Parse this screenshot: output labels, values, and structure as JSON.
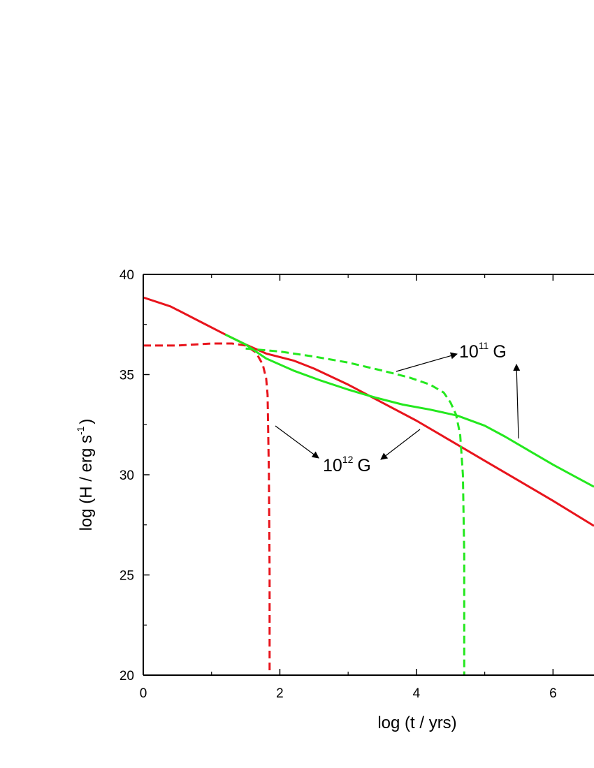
{
  "chart_data": {
    "type": "line",
    "title": "",
    "xlabel": "log (t / yrs)",
    "ylabel": {
      "main": "log (H / erg s",
      "sup": "-1",
      "close": ")"
    },
    "xlim": [
      0,
      6.6
    ],
    "ylim": [
      20,
      40
    ],
    "xticks": [
      0,
      2,
      4,
      6
    ],
    "yticks": [
      20,
      25,
      30,
      35,
      40
    ],
    "grid": false,
    "series": [
      {
        "color": "#e8141c",
        "style": "solid",
        "x": [
          0,
          0.4,
          0.8,
          1.2,
          1.5,
          1.8,
          2.2,
          2.5,
          3.0,
          3.5,
          4.0,
          4.5,
          5.0,
          5.5,
          6.0,
          6.6
        ],
        "y": [
          38.85,
          38.4,
          37.7,
          37.0,
          36.5,
          36.05,
          35.7,
          35.3,
          34.5,
          33.6,
          32.7,
          31.7,
          30.7,
          29.7,
          28.7,
          27.45
        ]
      },
      {
        "color": "#e8141c",
        "style": "dashed",
        "x": [
          0,
          0.5,
          1.0,
          1.3,
          1.5,
          1.65,
          1.75,
          1.8,
          1.82,
          1.84,
          1.85,
          1.85
        ],
        "y": [
          36.45,
          36.45,
          36.55,
          36.55,
          36.45,
          36.1,
          35.5,
          34.8,
          34.0,
          30.0,
          25.0,
          20.0
        ]
      },
      {
        "color": "#24e81e",
        "style": "solid",
        "x": [
          1.2,
          1.5,
          1.8,
          2.2,
          2.6,
          3.0,
          3.4,
          3.8,
          4.2,
          4.6,
          5.0,
          5.3,
          5.6,
          6.0,
          6.3,
          6.6
        ],
        "y": [
          37.0,
          36.5,
          35.8,
          35.2,
          34.7,
          34.25,
          33.85,
          33.5,
          33.25,
          32.95,
          32.45,
          31.9,
          31.3,
          30.5,
          29.95,
          29.4
        ]
      },
      {
        "color": "#24e81e",
        "style": "dashed",
        "x": [
          1.5,
          2.0,
          2.5,
          3.0,
          3.5,
          3.9,
          4.2,
          4.4,
          4.5,
          4.58,
          4.64,
          4.68,
          4.7,
          4.7
        ],
        "y": [
          36.3,
          36.15,
          35.9,
          35.6,
          35.2,
          34.85,
          34.5,
          34.1,
          33.6,
          33.0,
          32.0,
          30.0,
          26.0,
          20.0
        ]
      }
    ],
    "annotations": [
      {
        "base": "10",
        "sup": "11",
        "unit": "G"
      },
      {
        "base": "10",
        "sup": "12",
        "unit": "G"
      }
    ]
  }
}
